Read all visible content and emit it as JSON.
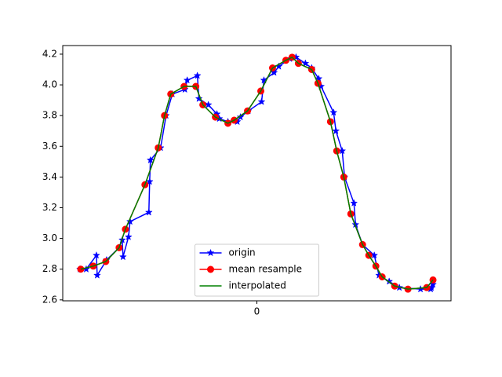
{
  "chart_data": {
    "type": "line",
    "xlim": [
      -248,
      248
    ],
    "xticks": [
      0
    ],
    "ylim": [
      2.594,
      4.256
    ],
    "yticks": [
      {
        "value": 2.6,
        "label": "2.6"
      },
      {
        "value": 2.8,
        "label": "2.8"
      },
      {
        "value": 3.0,
        "label": "3.0"
      },
      {
        "value": 3.2,
        "label": "3.2"
      },
      {
        "value": 3.4,
        "label": "3.4"
      },
      {
        "value": 3.6,
        "label": "3.6"
      },
      {
        "value": 3.8,
        "label": "3.8"
      },
      {
        "value": 4.0,
        "label": "4.0"
      },
      {
        "value": 4.2,
        "label": "4.2"
      }
    ],
    "legend": "lower center",
    "series": [
      {
        "name": "origin",
        "color": "#0000ff",
        "marker": "star",
        "x": [
          -226,
          -218,
          -205,
          -204,
          -192,
          -176,
          -172,
          -171,
          -164,
          -162,
          -138,
          -137,
          -136,
          -123,
          -116,
          -108,
          -92,
          -89,
          -76,
          -74,
          -62,
          -51,
          -48,
          -37,
          -25,
          -21,
          -11,
          6,
          9,
          22,
          28,
          42,
          50,
          62,
          70,
          79,
          82,
          98,
          101,
          109,
          112,
          124,
          126,
          135,
          150,
          156,
          169,
          182,
          209,
          222,
          223,
          225
        ],
        "values": [
          2.8,
          2.8,
          2.89,
          2.76,
          2.86,
          2.94,
          2.99,
          2.88,
          3.01,
          3.11,
          3.17,
          3.37,
          3.51,
          3.59,
          3.8,
          3.94,
          3.97,
          4.03,
          4.06,
          3.91,
          3.87,
          3.81,
          3.78,
          3.76,
          3.76,
          3.79,
          3.83,
          3.89,
          4.03,
          4.08,
          4.12,
          4.17,
          4.18,
          4.14,
          4.11,
          4.04,
          3.99,
          3.82,
          3.7,
          3.57,
          3.4,
          3.23,
          3.09,
          2.96,
          2.89,
          2.76,
          2.72,
          2.68,
          2.67,
          2.67,
          2.68,
          2.7
        ]
      },
      {
        "name": "mean resample",
        "color": "#ff0000",
        "marker": "circle",
        "x": [
          -225,
          -209,
          -193,
          -176,
          -168,
          -143,
          -126,
          -118,
          -110,
          -93,
          -78,
          -69,
          -53,
          -37,
          -29,
          -12,
          5,
          20,
          37,
          45,
          53,
          70,
          78,
          94,
          102,
          111,
          120,
          135,
          143,
          152,
          160,
          176,
          193,
          217,
          225
        ],
        "values": [
          2.8,
          2.82,
          2.85,
          2.94,
          3.06,
          3.35,
          3.59,
          3.8,
          3.94,
          3.99,
          3.99,
          3.87,
          3.79,
          3.75,
          3.77,
          3.83,
          3.96,
          4.11,
          4.16,
          4.18,
          4.14,
          4.1,
          4.01,
          3.76,
          3.57,
          3.4,
          3.16,
          2.96,
          2.89,
          2.82,
          2.75,
          2.69,
          2.67,
          2.68,
          2.73
        ]
      },
      {
        "name": "interpolated",
        "color": "#008000",
        "marker": null,
        "x": [
          -225,
          -209,
          -193,
          -176,
          -168,
          -143,
          -126,
          -118,
          -110,
          -93,
          -78,
          -69,
          -53,
          -37,
          -29,
          -12,
          5,
          20,
          37,
          45,
          53,
          70,
          78,
          94,
          102,
          111,
          120,
          135,
          143,
          152,
          160,
          176,
          193,
          217,
          225
        ],
        "values": [
          2.8,
          2.82,
          2.85,
          2.94,
          3.06,
          3.35,
          3.59,
          3.8,
          3.94,
          3.99,
          3.99,
          3.87,
          3.79,
          3.75,
          3.77,
          3.83,
          3.96,
          4.11,
          4.16,
          4.18,
          4.14,
          4.1,
          4.01,
          3.76,
          3.57,
          3.4,
          3.16,
          2.96,
          2.89,
          2.82,
          2.75,
          2.69,
          2.67,
          2.68,
          2.73
        ]
      }
    ]
  }
}
